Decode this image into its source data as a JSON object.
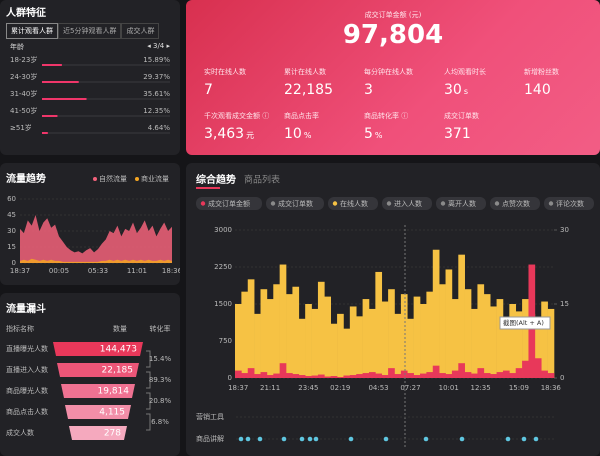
{
  "audience": {
    "title": "人群特征",
    "tabs": [
      "累计观看人群",
      "近5分钟观看人群",
      "成交人群"
    ],
    "group": "年龄",
    "pager": "◂ 3/4 ▸",
    "rows": [
      {
        "label": "18-23岁",
        "value": 15.89,
        "value_label": "15.89%"
      },
      {
        "label": "24-30岁",
        "value": 29.37,
        "value_label": "29.37%"
      },
      {
        "label": "31-40岁",
        "value": 35.61,
        "value_label": "35.61%"
      },
      {
        "label": "41-50岁",
        "value": 12.35,
        "value_label": "12.35%"
      },
      {
        "label": "≥51岁",
        "value": 4.64,
        "value_label": "4.64%"
      }
    ],
    "color": "#f0366a"
  },
  "metrics": {
    "headline_label": "成交订单金额 (元)",
    "headline_value": "97,804",
    "items": [
      {
        "label": "实时在线人数",
        "value": "7"
      },
      {
        "label": "累计在线人数",
        "value": "22,185"
      },
      {
        "label": "每分钟在线人数",
        "value": "3"
      },
      {
        "label": "人均观看时长",
        "value": "30",
        "unit": "s"
      },
      {
        "label": "新增粉丝数",
        "value": "140"
      },
      {
        "label": "千次观看成交金额 ⓘ",
        "value": "3,463",
        "unit": "元"
      },
      {
        "label": "商品点击率",
        "value": "10",
        "unit": "%"
      },
      {
        "label": "商品转化率 ⓘ",
        "value": "5",
        "unit": "%"
      },
      {
        "label": "成交订单数",
        "value": "371"
      }
    ]
  },
  "funnel": {
    "title": "流量漏斗",
    "headers": [
      "指标名称",
      "数量",
      "转化率"
    ],
    "rows": [
      {
        "label": "直播曝光人数",
        "value": "144,473"
      },
      {
        "label": "直播进入人数",
        "value": "22,185"
      },
      {
        "label": "商品曝光人数",
        "value": "19,814"
      },
      {
        "label": "商品点击人数",
        "value": "4,115"
      },
      {
        "label": "成交人数",
        "value": "278"
      }
    ],
    "rates": [
      "15.4%",
      "89.3%",
      "20.8%",
      "6.8%"
    ]
  },
  "chart_data": [
    {
      "type": "area",
      "title": "流量趋势",
      "categories": [
        "18:37",
        null,
        null,
        null,
        null,
        null,
        null,
        null,
        null,
        null,
        "00:05",
        null,
        null,
        null,
        null,
        null,
        null,
        null,
        null,
        null,
        "05:33",
        null,
        null,
        null,
        null,
        null,
        null,
        null,
        null,
        null,
        "11:01",
        null,
        null,
        null,
        null,
        null,
        null,
        null,
        null,
        "18:36"
      ],
      "series": [
        {
          "name": "自然流量",
          "color": "#f2617a",
          "values": [
            32,
            28,
            40,
            35,
            45,
            30,
            38,
            42,
            33,
            36,
            25,
            20,
            15,
            12,
            10,
            11,
            9,
            12,
            14,
            10,
            13,
            18,
            22,
            30,
            28,
            35,
            25,
            32,
            30,
            38,
            28,
            33,
            40,
            30,
            35,
            25,
            32,
            38,
            30,
            34
          ]
        },
        {
          "name": "商业流量",
          "color": "#f5a623",
          "values": [
            2,
            3,
            2,
            4,
            3,
            2,
            3,
            2,
            3,
            2,
            2,
            1,
            1,
            1,
            1,
            1,
            1,
            1,
            1,
            1,
            1,
            2,
            2,
            3,
            2,
            3,
            2,
            3,
            2,
            3,
            2,
            3,
            2,
            3,
            2,
            2,
            3,
            2,
            3,
            2
          ]
        }
      ],
      "ylim": [
        0,
        60
      ],
      "yticks": [
        0,
        15,
        30,
        45,
        60
      ]
    },
    {
      "type": "bar",
      "tabs": [
        "综合趋势",
        "商品列表"
      ],
      "annotation": "截图(Alt + A)",
      "timeline_labels": [
        "营销工具",
        "商品讲解"
      ],
      "categories": [
        "18:37",
        null,
        null,
        null,
        null,
        "21:11",
        null,
        null,
        null,
        null,
        null,
        "23:45",
        null,
        null,
        null,
        null,
        "02:19",
        null,
        null,
        null,
        null,
        null,
        "04:53",
        null,
        null,
        null,
        null,
        "07:27",
        null,
        null,
        null,
        null,
        null,
        "10:01",
        null,
        null,
        null,
        null,
        "12:35",
        null,
        null,
        null,
        null,
        null,
        "15:09",
        null,
        null,
        null,
        null,
        "18:36"
      ],
      "series": [
        {
          "name": "成交订单金额",
          "color": "#e8385a",
          "values": [
            150,
            100,
            200,
            80,
            120,
            60,
            90,
            300,
            100,
            80,
            60,
            40,
            50,
            70,
            30,
            40,
            20,
            50,
            60,
            80,
            100,
            120,
            90,
            60,
            200,
            80,
            150,
            100,
            60,
            90,
            120,
            250,
            100,
            80,
            150,
            300,
            120,
            90,
            200,
            100,
            80,
            120,
            150,
            100,
            200,
            350,
            2300,
            400,
            150,
            100
          ]
        },
        {
          "name": "成交订单数",
          "color": "#8a8a8a"
        },
        {
          "name": "在线人数",
          "color": "#f6c244",
          "values": [
            1500,
            1750,
            2000,
            1300,
            1800,
            1600,
            1900,
            2300,
            1700,
            1850,
            1200,
            1500,
            1400,
            1950,
            1650,
            1100,
            1300,
            1000,
            1450,
            1250,
            1600,
            1400,
            2150,
            1550,
            1800,
            1300,
            1700,
            1200,
            1650,
            1500,
            1750,
            2600,
            1900,
            2200,
            1600,
            2500,
            1800,
            1400,
            1900,
            1700,
            1450,
            1600,
            1200,
            1500,
            1350,
            1600,
            1300,
            1100,
            1550,
            1400
          ]
        },
        {
          "name": "进入人数",
          "color": "#8a8a8a"
        },
        {
          "name": "离开人数",
          "color": "#8a8a8a"
        },
        {
          "name": "点赞次数",
          "color": "#8a8a8a"
        },
        {
          "name": "评论次数",
          "color": "#8a8a8a"
        }
      ],
      "ylim": [
        0,
        3000
      ],
      "yticks": [
        0,
        750,
        1500,
        2250,
        3000
      ],
      "y2lim": [
        0,
        30
      ],
      "y2ticks": [
        0,
        15,
        30
      ]
    }
  ]
}
